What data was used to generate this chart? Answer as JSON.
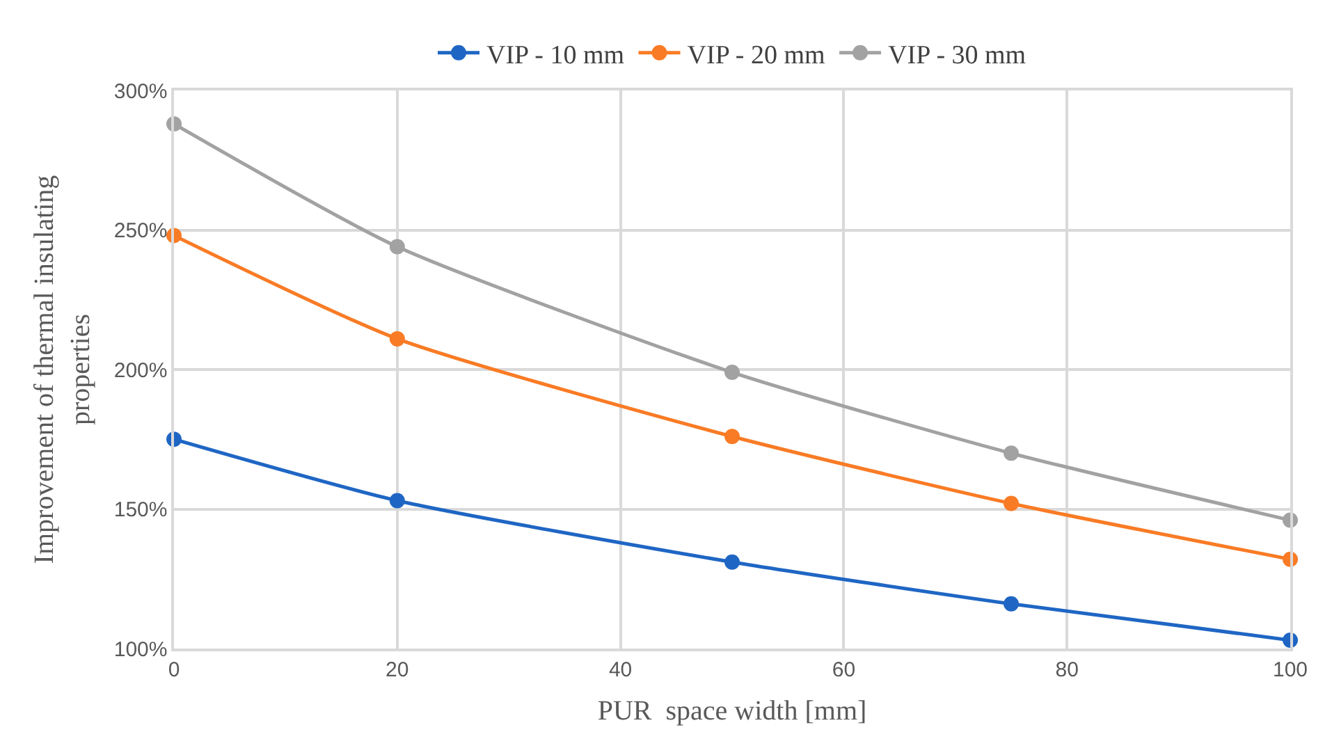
{
  "chart_data": {
    "type": "line",
    "xlabel": "PUR  space width [mm]",
    "ylabel": "Improvement of thermal insulating\nproperties",
    "x": [
      0,
      20,
      50,
      75,
      100
    ],
    "series": [
      {
        "name": "VIP - 10 mm",
        "color": "#1f66c4",
        "values": [
          175,
          153,
          131,
          116,
          103
        ]
      },
      {
        "name": "VIP - 20 mm",
        "color": "#f97b25",
        "values": [
          248,
          211,
          176,
          152,
          132
        ]
      },
      {
        "name": "VIP - 30 mm",
        "color": "#a2a2a2",
        "values": [
          288,
          244,
          199,
          170,
          146
        ]
      }
    ],
    "xlim": [
      0,
      100
    ],
    "xticks": [
      0,
      20,
      40,
      60,
      80,
      100
    ],
    "ylim": [
      100,
      300
    ],
    "yticks": [
      {
        "value": 100,
        "label": "100%"
      },
      {
        "value": 150,
        "label": "150%"
      },
      {
        "value": 200,
        "label": "200%"
      },
      {
        "value": 250,
        "label": "250%"
      },
      {
        "value": 300,
        "label": "300%"
      }
    ],
    "grid": true,
    "legend": "top",
    "marker": "circle",
    "line_style": "solid"
  }
}
